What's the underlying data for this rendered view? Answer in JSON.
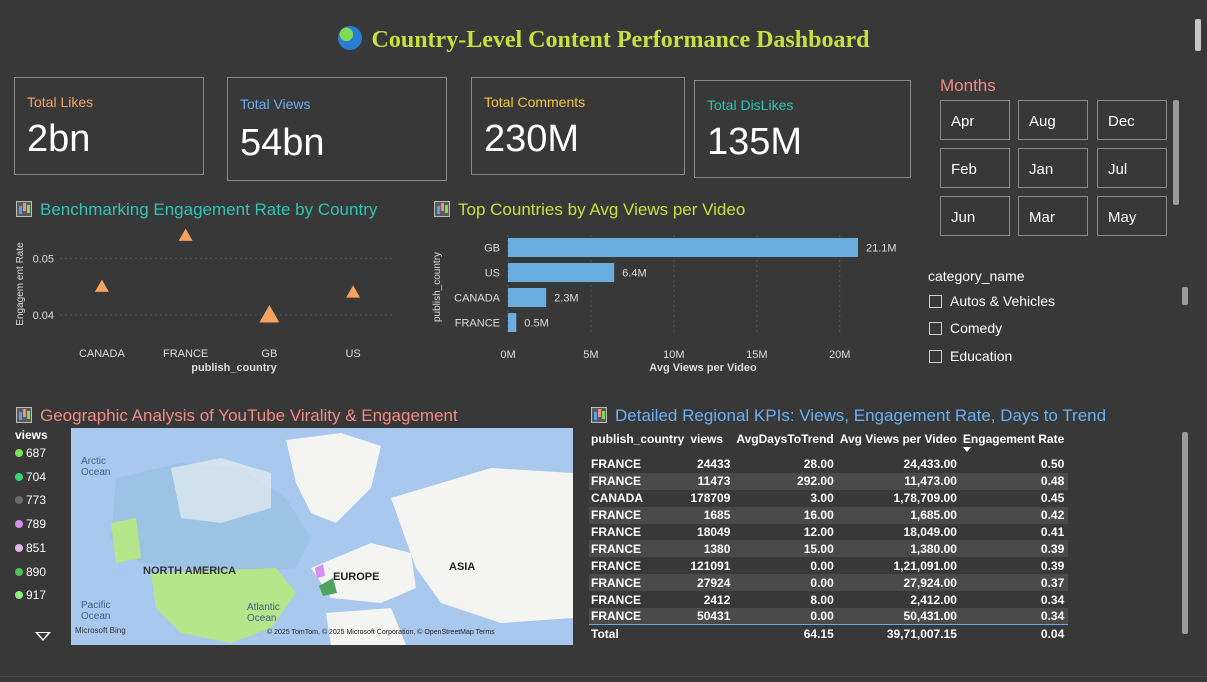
{
  "title": "Country-Level Content Performance Dashboard",
  "cards": [
    {
      "label": "Total Likes",
      "value": "2bn",
      "color": "#f4a261"
    },
    {
      "label": "Total Views",
      "value": "54bn",
      "color": "#6ab0f3"
    },
    {
      "label": "Total Comments",
      "value": "230M",
      "color": "#f4c542"
    },
    {
      "label": "Total DisLikes",
      "value": "135M",
      "color": "#2ec4b6"
    }
  ],
  "months": {
    "title": "Months",
    "items": [
      "Apr",
      "Aug",
      "Dec",
      "Feb",
      "Jan",
      "Jul",
      "Jun",
      "Mar",
      "May"
    ]
  },
  "category": {
    "title": "category_name",
    "items": [
      "Autos & Vehicles",
      "Comedy",
      "Education"
    ]
  },
  "engagement_title": "Benchmarking Engagement Rate by Country",
  "avgviews_title": "Top Countries by Avg Views per Video",
  "geo_title": "Geographic Analysis of YouTube Virality & Engagement",
  "kpi_title": "Detailed Regional KPIs: Views, Engagement Rate, Days to Trend",
  "chart_data": [
    {
      "type": "scatter",
      "xlabel": "publish_country",
      "ylabel": "Engagem ent Rate",
      "categories": [
        "CANADA",
        "FRANCE",
        "GB",
        "US"
      ],
      "points": [
        {
          "x": "CANADA",
          "y": 0.045
        },
        {
          "x": "FRANCE",
          "y": 0.054
        },
        {
          "x": "GB",
          "y": 0.04
        },
        {
          "x": "US",
          "y": 0.044
        }
      ],
      "yticks": [
        "0.05",
        "0.04"
      ],
      "ylim": [
        0.037,
        0.055
      ]
    },
    {
      "type": "bar",
      "orientation": "horizontal",
      "xlabel": "Avg Views per Video",
      "ylabel": "publish_country",
      "categories": [
        "GB",
        "US",
        "CANADA",
        "FRANCE"
      ],
      "values": [
        21.1,
        6.4,
        2.3,
        0.5
      ],
      "data_labels": [
        "21.1M",
        "6.4M",
        "2.3M",
        "0.5M"
      ],
      "xticks": [
        "0M",
        "5M",
        "10M",
        "15M",
        "20M"
      ],
      "xlim": [
        0,
        21.1
      ],
      "color": "#6aaee0"
    }
  ],
  "map": {
    "legend_title": "views",
    "legend": [
      {
        "label": "687",
        "color": "#7ee05a"
      },
      {
        "label": "704",
        "color": "#3bd16f"
      },
      {
        "label": "773",
        "color": "#6a6a6a"
      },
      {
        "label": "789",
        "color": "#d78ef0"
      },
      {
        "label": "851",
        "color": "#e0b8e8"
      },
      {
        "label": "890",
        "color": "#4fbf58"
      },
      {
        "label": "917",
        "color": "#8af07a"
      }
    ],
    "labels": {
      "arctic": "Arctic Ocean",
      "na": "NORTH AMERICA",
      "europe": "EUROPE",
      "asia": "ASIA",
      "pacific": "Pacific Ocean",
      "atlantic": "Atlantic Ocean"
    },
    "brand": "Microsoft Bing",
    "attribution": "© 2025 TomTom, © 2025 Microsoft Corporation, © OpenStreetMap  Terms"
  },
  "kpi_table": {
    "headers": [
      "publish_country",
      "views",
      "AvgDaysToTrend",
      "Avg Views per Video",
      "Engagement Rate"
    ],
    "rows": [
      [
        "FRANCE",
        "24433",
        "28.00",
        "24,433.00",
        "0.50"
      ],
      [
        "FRANCE",
        "11473",
        "292.00",
        "11,473.00",
        "0.48"
      ],
      [
        "CANADA",
        "178709",
        "3.00",
        "1,78,709.00",
        "0.45"
      ],
      [
        "FRANCE",
        "1685",
        "16.00",
        "1,685.00",
        "0.42"
      ],
      [
        "FRANCE",
        "18049",
        "12.00",
        "18,049.00",
        "0.41"
      ],
      [
        "FRANCE",
        "1380",
        "15.00",
        "1,380.00",
        "0.39"
      ],
      [
        "FRANCE",
        "121091",
        "0.00",
        "1,21,091.00",
        "0.39"
      ],
      [
        "FRANCE",
        "27924",
        "0.00",
        "27,924.00",
        "0.37"
      ],
      [
        "FRANCE",
        "2412",
        "8.00",
        "2,412.00",
        "0.34"
      ],
      [
        "FRANCE",
        "50431",
        "0.00",
        "50,431.00",
        "0.34"
      ]
    ],
    "total": [
      "Total",
      "",
      "64.15",
      "39,71,007.15",
      "0.04"
    ]
  }
}
